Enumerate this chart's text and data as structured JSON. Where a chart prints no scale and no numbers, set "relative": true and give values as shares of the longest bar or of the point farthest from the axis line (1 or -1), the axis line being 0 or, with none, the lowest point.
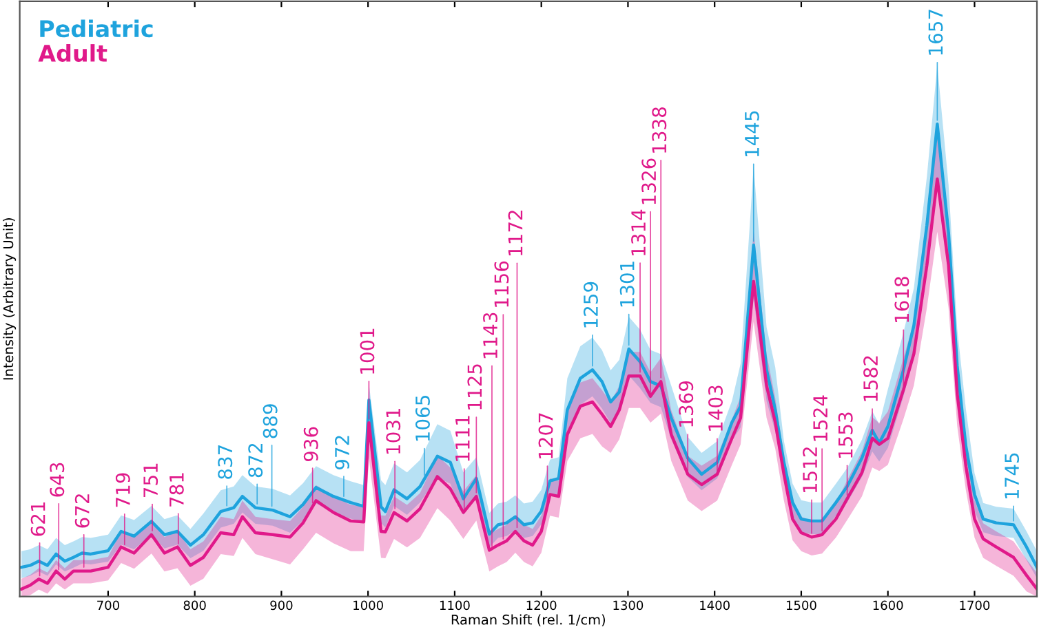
{
  "chart_data": {
    "type": "line",
    "xlabel": "Raman Shift (rel. 1/cm)",
    "ylabel": "Intensity (Arbitrary Unit)",
    "relative": true,
    "legend": "top left",
    "grid": false,
    "x": [
      600,
      610,
      620,
      630,
      640,
      650,
      660,
      670,
      680,
      700,
      715,
      730,
      750,
      765,
      780,
      795,
      810,
      830,
      845,
      855,
      870,
      890,
      910,
      925,
      940,
      960,
      980,
      995,
      1001,
      1015,
      1020,
      1030,
      1045,
      1060,
      1080,
      1095,
      1110,
      1125,
      1140,
      1150,
      1160,
      1170,
      1180,
      1190,
      1200,
      1210,
      1220,
      1230,
      1245,
      1259,
      1270,
      1280,
      1290,
      1301,
      1314,
      1326,
      1338,
      1350,
      1369,
      1385,
      1403,
      1420,
      1430,
      1445,
      1460,
      1470,
      1480,
      1490,
      1500,
      1512,
      1524,
      1540,
      1553,
      1570,
      1582,
      1590,
      1600,
      1618,
      1630,
      1645,
      1657,
      1670,
      1680,
      1690,
      1700,
      1710,
      1725,
      1745,
      1760,
      1772
    ],
    "xlim": [
      598,
      1772
    ],
    "xticks": [
      700,
      800,
      900,
      1000,
      1100,
      1200,
      1300,
      1400,
      1500,
      1600,
      1700
    ],
    "series": [
      {
        "name": "Pediatric",
        "color": "#1ea3dd",
        "values": [
          0.062,
          0.066,
          0.075,
          0.066,
          0.09,
          0.075,
          0.083,
          0.092,
          0.09,
          0.097,
          0.138,
          0.128,
          0.159,
          0.131,
          0.138,
          0.109,
          0.131,
          0.18,
          0.188,
          0.212,
          0.188,
          0.183,
          0.169,
          0.195,
          0.231,
          0.212,
          0.199,
          0.191,
          0.416,
          0.19,
          0.18,
          0.226,
          0.207,
          0.233,
          0.297,
          0.284,
          0.207,
          0.25,
          0.132,
          0.152,
          0.156,
          0.169,
          0.152,
          0.156,
          0.181,
          0.245,
          0.25,
          0.395,
          0.462,
          0.48,
          0.455,
          0.412,
          0.433,
          0.524,
          0.497,
          0.455,
          0.446,
          0.378,
          0.293,
          0.259,
          0.284,
          0.369,
          0.403,
          0.744,
          0.48,
          0.395,
          0.284,
          0.199,
          0.164,
          0.16,
          0.16,
          0.199,
          0.233,
          0.293,
          0.352,
          0.325,
          0.36,
          0.48,
          0.574,
          0.786,
          1.0,
          0.77,
          0.488,
          0.318,
          0.216,
          0.164,
          0.156,
          0.152,
          0.105,
          0.062
        ],
        "upper": [
          0.096,
          0.1,
          0.109,
          0.1,
          0.124,
          0.109,
          0.117,
          0.126,
          0.124,
          0.131,
          0.172,
          0.162,
          0.192,
          0.164,
          0.172,
          0.143,
          0.176,
          0.225,
          0.233,
          0.257,
          0.233,
          0.228,
          0.214,
          0.24,
          0.276,
          0.257,
          0.244,
          0.236,
          0.45,
          0.246,
          0.236,
          0.282,
          0.263,
          0.289,
          0.365,
          0.351,
          0.263,
          0.295,
          0.177,
          0.197,
          0.201,
          0.214,
          0.197,
          0.201,
          0.226,
          0.29,
          0.295,
          0.462,
          0.53,
          0.548,
          0.522,
          0.479,
          0.501,
          0.592,
          0.565,
          0.522,
          0.513,
          0.446,
          0.338,
          0.304,
          0.329,
          0.414,
          0.493,
          0.91,
          0.57,
          0.485,
          0.329,
          0.239,
          0.204,
          0.199,
          0.199,
          0.239,
          0.272,
          0.332,
          0.392,
          0.365,
          0.439,
          0.559,
          0.653,
          0.889,
          1.125,
          0.871,
          0.567,
          0.397,
          0.261,
          0.198,
          0.19,
          0.186,
          0.138,
          0.096
        ],
        "lower": [
          0.039,
          0.044,
          0.053,
          0.044,
          0.068,
          0.053,
          0.061,
          0.07,
          0.068,
          0.074,
          0.11,
          0.1,
          0.131,
          0.102,
          0.11,
          0.081,
          0.097,
          0.146,
          0.154,
          0.178,
          0.154,
          0.15,
          0.135,
          0.161,
          0.197,
          0.178,
          0.165,
          0.158,
          0.371,
          0.156,
          0.146,
          0.192,
          0.173,
          0.199,
          0.252,
          0.239,
          0.173,
          0.216,
          0.104,
          0.124,
          0.128,
          0.141,
          0.124,
          0.128,
          0.153,
          0.212,
          0.216,
          0.35,
          0.406,
          0.424,
          0.398,
          0.367,
          0.388,
          0.468,
          0.441,
          0.41,
          0.401,
          0.333,
          0.253,
          0.225,
          0.25,
          0.33,
          0.358,
          0.631,
          0.413,
          0.35,
          0.25,
          0.171,
          0.136,
          0.132,
          0.132,
          0.171,
          0.199,
          0.253,
          0.307,
          0.286,
          0.315,
          0.424,
          0.506,
          0.696,
          0.888,
          0.68,
          0.432,
          0.279,
          0.182,
          0.136,
          0.128,
          0.124,
          0.077,
          0.039
        ]
      },
      {
        "name": "Adult",
        "color": "#e0198a",
        "values": [
          0.016,
          0.024,
          0.037,
          0.028,
          0.054,
          0.037,
          0.054,
          0.054,
          0.054,
          0.062,
          0.105,
          0.092,
          0.131,
          0.092,
          0.105,
          0.066,
          0.083,
          0.135,
          0.131,
          0.169,
          0.135,
          0.131,
          0.126,
          0.156,
          0.203,
          0.178,
          0.16,
          0.158,
          0.368,
          0.138,
          0.137,
          0.178,
          0.16,
          0.186,
          0.254,
          0.228,
          0.178,
          0.212,
          0.098,
          0.109,
          0.118,
          0.138,
          0.118,
          0.109,
          0.138,
          0.216,
          0.212,
          0.343,
          0.403,
          0.412,
          0.386,
          0.36,
          0.395,
          0.467,
          0.467,
          0.424,
          0.455,
          0.343,
          0.259,
          0.237,
          0.259,
          0.335,
          0.378,
          0.667,
          0.446,
          0.369,
          0.259,
          0.164,
          0.135,
          0.126,
          0.131,
          0.164,
          0.207,
          0.262,
          0.335,
          0.322,
          0.335,
          0.438,
          0.514,
          0.701,
          0.884,
          0.701,
          0.429,
          0.276,
          0.164,
          0.122,
          0.105,
          0.083,
          0.045,
          0.016
        ],
        "upper": [
          0.038,
          0.046,
          0.06,
          0.051,
          0.077,
          0.06,
          0.077,
          0.077,
          0.077,
          0.084,
          0.138,
          0.126,
          0.164,
          0.126,
          0.138,
          0.1,
          0.117,
          0.169,
          0.164,
          0.203,
          0.169,
          0.164,
          0.16,
          0.19,
          0.236,
          0.212,
          0.194,
          0.191,
          0.405,
          0.172,
          0.171,
          0.212,
          0.194,
          0.219,
          0.299,
          0.273,
          0.223,
          0.257,
          0.132,
          0.143,
          0.152,
          0.172,
          0.152,
          0.143,
          0.172,
          0.25,
          0.245,
          0.394,
          0.453,
          0.462,
          0.437,
          0.411,
          0.446,
          0.518,
          0.518,
          0.475,
          0.505,
          0.394,
          0.298,
          0.277,
          0.298,
          0.375,
          0.423,
          0.774,
          0.513,
          0.42,
          0.298,
          0.204,
          0.169,
          0.16,
          0.164,
          0.198,
          0.246,
          0.307,
          0.38,
          0.367,
          0.392,
          0.505,
          0.582,
          0.78,
          0.974,
          0.78,
          0.496,
          0.326,
          0.204,
          0.155,
          0.138,
          0.117,
          0.079,
          0.05
        ],
        "lower": [
          0.0,
          0.003,
          0.015,
          0.006,
          0.028,
          0.015,
          0.028,
          0.028,
          0.028,
          0.034,
          0.071,
          0.059,
          0.091,
          0.053,
          0.06,
          0.023,
          0.038,
          0.09,
          0.086,
          0.124,
          0.09,
          0.079,
          0.068,
          0.1,
          0.135,
          0.113,
          0.096,
          0.096,
          0.293,
          0.082,
          0.081,
          0.122,
          0.104,
          0.124,
          0.187,
          0.161,
          0.122,
          0.161,
          0.053,
          0.064,
          0.073,
          0.093,
          0.073,
          0.064,
          0.093,
          0.171,
          0.167,
          0.287,
          0.335,
          0.344,
          0.318,
          0.304,
          0.333,
          0.399,
          0.399,
          0.368,
          0.387,
          0.287,
          0.203,
          0.181,
          0.203,
          0.279,
          0.322,
          0.582,
          0.378,
          0.313,
          0.203,
          0.119,
          0.096,
          0.087,
          0.091,
          0.125,
          0.162,
          0.212,
          0.273,
          0.266,
          0.279,
          0.376,
          0.447,
          0.611,
          0.772,
          0.611,
          0.361,
          0.225,
          0.125,
          0.082,
          0.065,
          0.044,
          0.011,
          0.0
        ]
      }
    ],
    "annotations": [
      {
        "text": "621",
        "x": 621,
        "y": 0.036
      },
      {
        "text": "643",
        "x": 643,
        "y": 0.049
      },
      {
        "text": "672",
        "x": 672,
        "y": 0.054
      },
      {
        "text": "719",
        "x": 719,
        "y": 0.102
      },
      {
        "text": "751",
        "x": 751,
        "y": 0.131
      },
      {
        "text": "781",
        "x": 781,
        "y": 0.104
      },
      {
        "text": "837",
        "x": 837,
        "y": 0.184
      },
      {
        "text": "872",
        "x": 872,
        "y": 0.188
      },
      {
        "text": "889",
        "x": 889,
        "y": 0.183
      },
      {
        "text": "936",
        "x": 936,
        "y": 0.19
      },
      {
        "text": "972",
        "x": 972,
        "y": 0.204
      },
      {
        "text": "1001",
        "x": 1001,
        "y": 0.368
      },
      {
        "text": "1031",
        "x": 1031,
        "y": 0.178
      },
      {
        "text": "1065",
        "x": 1065,
        "y": 0.249
      },
      {
        "text": "1111",
        "x": 1111,
        "y": 0.178
      },
      {
        "text": "1125",
        "x": 1125,
        "y": 0.212
      },
      {
        "text": "1143",
        "x": 1143,
        "y": 0.098
      },
      {
        "text": "1156",
        "x": 1156,
        "y": 0.114
      },
      {
        "text": "1172",
        "x": 1172,
        "y": 0.138
      },
      {
        "text": "1207",
        "x": 1207,
        "y": 0.193
      },
      {
        "text": "1259",
        "x": 1259,
        "y": 0.48
      },
      {
        "text": "1301",
        "x": 1301,
        "y": 0.524
      },
      {
        "text": "1314",
        "x": 1314,
        "y": 0.467
      },
      {
        "text": "1326",
        "x": 1326,
        "y": 0.424
      },
      {
        "text": "1338",
        "x": 1338,
        "y": 0.455
      },
      {
        "text": "1369",
        "x": 1369,
        "y": 0.259
      },
      {
        "text": "1403",
        "x": 1403,
        "y": 0.259
      },
      {
        "text": "1445",
        "x": 1445,
        "y": 0.744
      },
      {
        "text": "1512",
        "x": 1512,
        "y": 0.126
      },
      {
        "text": "1524",
        "x": 1524,
        "y": 0.131
      },
      {
        "text": "1553",
        "x": 1553,
        "y": 0.207
      },
      {
        "text": "1582",
        "x": 1582,
        "y": 0.335
      },
      {
        "text": "1618",
        "x": 1618,
        "y": 0.438
      },
      {
        "text": "1657",
        "x": 1657,
        "y": 1.0
      },
      {
        "text": "1745",
        "x": 1745,
        "y": 0.152
      }
    ]
  }
}
